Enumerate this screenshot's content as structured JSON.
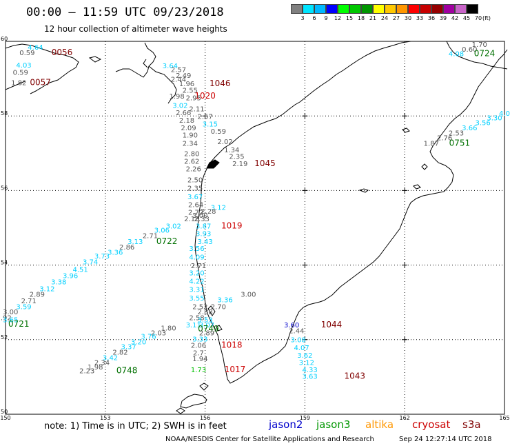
{
  "header": {
    "title": "00:00 – 11:59 UTC 09/23/2018",
    "subtitle": "12 hour collection of altimeter wave heights"
  },
  "colorbar": {
    "colors": [
      "#808080",
      "#00e5ff",
      "#00b8ff",
      "#0000ff",
      "#00ff00",
      "#00c800",
      "#009600",
      "#ffff00",
      "#ffc800",
      "#ff9600",
      "#ff0000",
      "#c80000",
      "#960000",
      "#a000a0",
      "#c864c8",
      "#000000"
    ],
    "labels": [
      "3",
      "6",
      "9",
      "12",
      "15",
      "18",
      "21",
      "24",
      "27",
      "30",
      "33",
      "36",
      "39",
      "42",
      "45",
      "70"
    ],
    "unit": "(ft)"
  },
  "map": {
    "lat_labels": [
      "60",
      "58",
      "56",
      "54",
      "52",
      "50"
    ],
    "lon_labels": [
      "150",
      "153",
      "156",
      "159",
      "162",
      "165"
    ],
    "ticks": [
      {
        "lon": 156,
        "lat": 58
      },
      {
        "lon": 159,
        "lat": 58
      },
      {
        "lon": 162,
        "lat": 58
      },
      {
        "lon": 159,
        "lat": 56
      },
      {
        "lon": 162,
        "lat": 56
      },
      {
        "lon": 159,
        "lat": 54
      },
      {
        "lon": 162,
        "lat": 54
      },
      {
        "lon": 159,
        "lat": 52
      },
      {
        "lon": 162,
        "lat": 52
      }
    ],
    "swh_labels": [
      {
        "text": "0.59",
        "lon": 150.65,
        "lat": 59.63,
        "color": "#555555"
      },
      {
        "text": "4.64",
        "lon": 150.9,
        "lat": 59.78,
        "color": "#00d0ff"
      },
      {
        "text": "0056",
        "lon": 151.7,
        "lat": 59.63,
        "color": "#800000"
      },
      {
        "text": "4.03",
        "lon": 150.55,
        "lat": 59.3,
        "color": "#00d0ff"
      },
      {
        "text": "0.59",
        "lon": 150.45,
        "lat": 59.1,
        "color": "#555555"
      },
      {
        "text": "1.82",
        "lon": 150.4,
        "lat": 58.83,
        "color": "#555555"
      },
      {
        "text": "0057",
        "lon": 151.05,
        "lat": 58.83,
        "color": "#800000"
      },
      {
        "text": "3.64",
        "lon": 154.95,
        "lat": 59.28,
        "color": "#00d0ff"
      },
      {
        "text": "2.57",
        "lon": 155.2,
        "lat": 59.18,
        "color": "#555555"
      },
      {
        "text": "2.49",
        "lon": 155.35,
        "lat": 59.02,
        "color": "#555555"
      },
      {
        "text": "2.44",
        "lon": 155.2,
        "lat": 58.92,
        "color": "#555555"
      },
      {
        "text": "1.96",
        "lon": 155.45,
        "lat": 58.8,
        "color": "#555555"
      },
      {
        "text": "1046",
        "lon": 156.45,
        "lat": 58.8,
        "color": "#800000"
      },
      {
        "text": "2.55",
        "lon": 155.55,
        "lat": 58.62,
        "color": "#555555"
      },
      {
        "text": "1.98",
        "lon": 155.15,
        "lat": 58.47,
        "color": "#555555"
      },
      {
        "text": "1020",
        "lon": 156.0,
        "lat": 58.47,
        "color": "#cc0000"
      },
      {
        "text": "2.95",
        "lon": 155.65,
        "lat": 58.42,
        "color": "#555555"
      },
      {
        "text": "3.02",
        "lon": 155.25,
        "lat": 58.22,
        "color": "#00d0ff"
      },
      {
        "text": "2.11",
        "lon": 155.75,
        "lat": 58.12,
        "color": "#555555"
      },
      {
        "text": "2.66",
        "lon": 155.35,
        "lat": 58.02,
        "color": "#555555"
      },
      {
        "text": "2.57",
        "lon": 156.0,
        "lat": 57.92,
        "color": "#555555"
      },
      {
        "text": "2.18",
        "lon": 155.45,
        "lat": 57.82,
        "color": "#555555"
      },
      {
        "text": "3.15",
        "lon": 156.15,
        "lat": 57.72,
        "color": "#00d0ff"
      },
      {
        "text": "2.09",
        "lon": 155.5,
        "lat": 57.62,
        "color": "#555555"
      },
      {
        "text": "0.59",
        "lon": 156.4,
        "lat": 57.52,
        "color": "#555555"
      },
      {
        "text": "1.90",
        "lon": 155.55,
        "lat": 57.42,
        "color": "#555555"
      },
      {
        "text": "2.02",
        "lon": 156.6,
        "lat": 57.25,
        "color": "#555555"
      },
      {
        "text": "2.34",
        "lon": 155.55,
        "lat": 57.2,
        "color": "#555555"
      },
      {
        "text": "1.34",
        "lon": 156.8,
        "lat": 57.02,
        "color": "#555555"
      },
      {
        "text": "2.80",
        "lon": 155.6,
        "lat": 56.92,
        "color": "#555555"
      },
      {
        "text": "2.35",
        "lon": 156.95,
        "lat": 56.85,
        "color": "#555555"
      },
      {
        "text": "2.62",
        "lon": 155.6,
        "lat": 56.72,
        "color": "#555555"
      },
      {
        "text": "2.19",
        "lon": 157.05,
        "lat": 56.65,
        "color": "#555555"
      },
      {
        "text": "1045",
        "lon": 157.8,
        "lat": 56.65,
        "color": "#800000"
      },
      {
        "text": "2.26",
        "lon": 155.65,
        "lat": 56.52,
        "color": "#555555"
      },
      {
        "text": "2.50",
        "lon": 155.7,
        "lat": 56.22,
        "color": "#555555"
      },
      {
        "text": "2.35",
        "lon": 155.7,
        "lat": 56.0,
        "color": "#555555"
      },
      {
        "text": "3.67",
        "lon": 155.7,
        "lat": 55.77,
        "color": "#00d0ff"
      },
      {
        "text": "2.64",
        "lon": 155.72,
        "lat": 55.55,
        "color": "#555555"
      },
      {
        "text": "3.12",
        "lon": 156.4,
        "lat": 55.48,
        "color": "#00d0ff"
      },
      {
        "text": "2.72",
        "lon": 155.72,
        "lat": 55.35,
        "color": "#555555"
      },
      {
        "text": "2.28",
        "lon": 156.1,
        "lat": 55.38,
        "color": "#555555"
      },
      {
        "text": "3.00",
        "lon": 155.85,
        "lat": 55.27,
        "color": "#555555"
      },
      {
        "text": "2.18",
        "lon": 155.6,
        "lat": 55.18,
        "color": "#555555"
      },
      {
        "text": "2.33",
        "lon": 155.9,
        "lat": 55.18,
        "color": "#555555"
      },
      {
        "text": "3.02",
        "lon": 155.05,
        "lat": 54.98,
        "color": "#00d0ff"
      },
      {
        "text": "3.87",
        "lon": 155.95,
        "lat": 54.98,
        "color": "#00d0ff"
      },
      {
        "text": "1019",
        "lon": 156.8,
        "lat": 54.98,
        "color": "#cc0000"
      },
      {
        "text": "3.06",
        "lon": 154.7,
        "lat": 54.87,
        "color": "#00d0ff"
      },
      {
        "text": "2.71",
        "lon": 154.35,
        "lat": 54.72,
        "color": "#555555"
      },
      {
        "text": "3.93",
        "lon": 155.95,
        "lat": 54.78,
        "color": "#00d0ff"
      },
      {
        "text": "3.13",
        "lon": 153.9,
        "lat": 54.57,
        "color": "#00d0ff"
      },
      {
        "text": "0722",
        "lon": 154.85,
        "lat": 54.57,
        "color": "#007000"
      },
      {
        "text": "3.43",
        "lon": 156.0,
        "lat": 54.57,
        "color": "#00d0ff"
      },
      {
        "text": "2.86",
        "lon": 153.65,
        "lat": 54.42,
        "color": "#555555"
      },
      {
        "text": "3.56",
        "lon": 155.75,
        "lat": 54.38,
        "color": "#00d0ff"
      },
      {
        "text": "3.36",
        "lon": 153.3,
        "lat": 54.28,
        "color": "#00d0ff"
      },
      {
        "text": "3.73",
        "lon": 152.9,
        "lat": 54.18,
        "color": "#00d0ff"
      },
      {
        "text": "4.09",
        "lon": 155.75,
        "lat": 54.15,
        "color": "#00d0ff"
      },
      {
        "text": "3.74",
        "lon": 152.55,
        "lat": 54.02,
        "color": "#00d0ff"
      },
      {
        "text": "2.71",
        "lon": 155.8,
        "lat": 53.92,
        "color": "#555555"
      },
      {
        "text": "4.51",
        "lon": 152.25,
        "lat": 53.82,
        "color": "#00d0ff"
      },
      {
        "text": "3.20",
        "lon": 155.75,
        "lat": 53.72,
        "color": "#00d0ff"
      },
      {
        "text": "3.96",
        "lon": 151.95,
        "lat": 53.65,
        "color": "#00d0ff"
      },
      {
        "text": "4.22",
        "lon": 155.75,
        "lat": 53.5,
        "color": "#00d0ff"
      },
      {
        "text": "3.38",
        "lon": 151.6,
        "lat": 53.48,
        "color": "#00d0ff"
      },
      {
        "text": "3.12",
        "lon": 151.25,
        "lat": 53.3,
        "color": "#00d0ff"
      },
      {
        "text": "3.31",
        "lon": 155.75,
        "lat": 53.28,
        "color": "#00d0ff"
      },
      {
        "text": "2.89",
        "lon": 150.95,
        "lat": 53.15,
        "color": "#555555"
      },
      {
        "text": "3.00",
        "lon": 157.3,
        "lat": 53.15,
        "color": "#555555"
      },
      {
        "text": "3.55",
        "lon": 155.75,
        "lat": 53.05,
        "color": "#00d0ff"
      },
      {
        "text": "3.36",
        "lon": 156.6,
        "lat": 53.0,
        "color": "#00d0ff"
      },
      {
        "text": "2.71",
        "lon": 150.7,
        "lat": 52.98,
        "color": "#555555"
      },
      {
        "text": "3.59",
        "lon": 150.55,
        "lat": 52.82,
        "color": "#00d0ff"
      },
      {
        "text": "2.52",
        "lon": 155.85,
        "lat": 52.82,
        "color": "#555555"
      },
      {
        "text": "2.70",
        "lon": 156.4,
        "lat": 52.82,
        "color": "#555555"
      },
      {
        "text": "3.00",
        "lon": 150.15,
        "lat": 52.68,
        "color": "#555555"
      },
      {
        "text": "2.88",
        "lon": 156.0,
        "lat": 52.68,
        "color": "#555555"
      },
      {
        "text": "2.92",
        "lon": 149.95,
        "lat": 52.52,
        "color": "#555555"
      },
      {
        "text": "2.58",
        "lon": 155.75,
        "lat": 52.52,
        "color": "#555555"
      },
      {
        "text": "3.65",
        "lon": 150.15,
        "lat": 52.47,
        "color": "#00d0ff"
      },
      {
        "text": "2.77",
        "lon": 149.55,
        "lat": 52.35,
        "color": "#555555"
      },
      {
        "text": "0721",
        "lon": 150.4,
        "lat": 52.35,
        "color": "#007000"
      },
      {
        "text": "3.53",
        "lon": 156.0,
        "lat": 52.47,
        "color": "#00d0ff"
      },
      {
        "text": "3.11",
        "lon": 155.65,
        "lat": 52.33,
        "color": "#00d0ff"
      },
      {
        "text": "3.07",
        "lon": 156.05,
        "lat": 52.33,
        "color": "#00d0ff"
      },
      {
        "text": "1.80",
        "lon": 154.9,
        "lat": 52.25,
        "color": "#555555"
      },
      {
        "text": "0749",
        "lon": 156.1,
        "lat": 52.22,
        "color": "#007000"
      },
      {
        "text": "2.03",
        "lon": 154.6,
        "lat": 52.12,
        "color": "#555555"
      },
      {
        "text": "2.89",
        "lon": 156.05,
        "lat": 52.12,
        "color": "#555555"
      },
      {
        "text": "3.76",
        "lon": 154.3,
        "lat": 52.02,
        "color": "#00d0ff"
      },
      {
        "text": "3.33",
        "lon": 155.85,
        "lat": 51.95,
        "color": "#00d0ff"
      },
      {
        "text": "3.20",
        "lon": 154.0,
        "lat": 51.88,
        "color": "#00d0ff"
      },
      {
        "text": "2.06",
        "lon": 155.8,
        "lat": 51.78,
        "color": "#555555"
      },
      {
        "text": "1018",
        "lon": 156.8,
        "lat": 51.78,
        "color": "#cc0000"
      },
      {
        "text": "3.37",
        "lon": 153.7,
        "lat": 51.75,
        "color": "#00d0ff"
      },
      {
        "text": "2.82",
        "lon": 153.45,
        "lat": 51.6,
        "color": "#555555"
      },
      {
        "text": "2.7",
        "lon": 155.8,
        "lat": 51.58,
        "color": "#555555"
      },
      {
        "text": "3.42",
        "lon": 153.15,
        "lat": 51.45,
        "color": "#00d0ff"
      },
      {
        "text": "1.94",
        "lon": 155.85,
        "lat": 51.42,
        "color": "#555555"
      },
      {
        "text": "2.34",
        "lon": 152.9,
        "lat": 51.32,
        "color": "#555555"
      },
      {
        "text": "1.98",
        "lon": 152.7,
        "lat": 51.2,
        "color": "#555555"
      },
      {
        "text": "2.23",
        "lon": 152.45,
        "lat": 51.1,
        "color": "#555555"
      },
      {
        "text": "0748",
        "lon": 153.65,
        "lat": 51.1,
        "color": "#007000"
      },
      {
        "text": "1.73",
        "lon": 155.8,
        "lat": 51.13,
        "color": "#00c000"
      },
      {
        "text": "1017",
        "lon": 156.9,
        "lat": 51.13,
        "color": "#cc0000"
      },
      {
        "text": "3.60",
        "lon": 158.6,
        "lat": 52.33,
        "color": "#0000cc"
      },
      {
        "text": "1044",
        "lon": 159.8,
        "lat": 52.33,
        "color": "#800000"
      },
      {
        "text": "2.44",
        "lon": 158.75,
        "lat": 52.17,
        "color": "#555555"
      },
      {
        "text": "3.08",
        "lon": 158.8,
        "lat": 51.93,
        "color": "#00d0ff"
      },
      {
        "text": "4.07",
        "lon": 158.9,
        "lat": 51.72,
        "color": "#00d0ff"
      },
      {
        "text": "3.62",
        "lon": 159.0,
        "lat": 51.52,
        "color": "#00d0ff"
      },
      {
        "text": "3.12",
        "lon": 159.05,
        "lat": 51.32,
        "color": "#00d0ff"
      },
      {
        "text": "4.33",
        "lon": 159.15,
        "lat": 51.13,
        "color": "#00d0ff"
      },
      {
        "text": "3.63",
        "lon": 159.15,
        "lat": 50.95,
        "color": "#00d0ff"
      },
      {
        "text": "1043",
        "lon": 160.5,
        "lat": 50.95,
        "color": "#800000"
      },
      {
        "text": "1.70",
        "lon": 164.25,
        "lat": 59.85,
        "color": "#555555"
      },
      {
        "text": "0.60",
        "lon": 163.95,
        "lat": 59.72,
        "color": "#555555"
      },
      {
        "text": "4.08",
        "lon": 163.55,
        "lat": 59.6,
        "color": "#00d0ff"
      },
      {
        "text": "0724",
        "lon": 164.4,
        "lat": 59.6,
        "color": "#007000"
      },
      {
        "text": "4.0",
        "lon": 165.0,
        "lat": 58.0,
        "color": "#00d0ff"
      },
      {
        "text": "3.30",
        "lon": 164.7,
        "lat": 57.88,
        "color": "#00d0ff"
      },
      {
        "text": "3.56",
        "lon": 164.35,
        "lat": 57.75,
        "color": "#00d0ff"
      },
      {
        "text": "3.66",
        "lon": 163.95,
        "lat": 57.62,
        "color": "#00d0ff"
      },
      {
        "text": "2.53",
        "lon": 163.55,
        "lat": 57.48,
        "color": "#555555"
      },
      {
        "text": "2.76",
        "lon": 163.2,
        "lat": 57.35,
        "color": "#555555"
      },
      {
        "text": "1.87",
        "lon": 162.8,
        "lat": 57.2,
        "color": "#555555"
      },
      {
        "text": "0751",
        "lon": 163.65,
        "lat": 57.2,
        "color": "#007000"
      }
    ]
  },
  "footer": {
    "note": "note:  1) Time is in UTC;  2) SWH is in feet",
    "legend": [
      {
        "name": "jason2",
        "color": "#0000cc"
      },
      {
        "name": "jason3",
        "color": "#009600"
      },
      {
        "name": "altika",
        "color": "#ff9600"
      },
      {
        "name": "cryosat",
        "color": "#cc0000"
      },
      {
        "name": "s3a",
        "color": "#800000"
      }
    ],
    "credit": "NOAA/NESDIS Center for Satellite Applications and Research",
    "timestamp": "Sep 24 12:27:14 UTC 2018"
  }
}
